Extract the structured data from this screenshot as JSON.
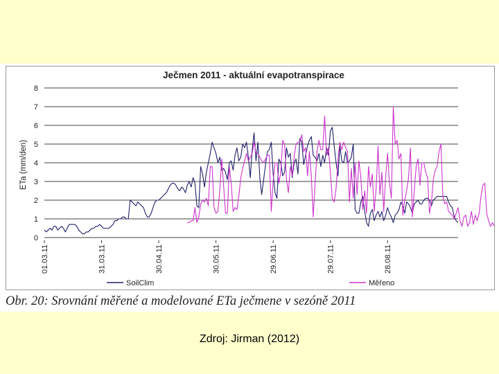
{
  "chart_data": {
    "type": "line",
    "title": "Ječmen 2011 - aktuální evapotranspirace",
    "ylabel": "ETa (mm/den)",
    "xlabel": "",
    "ylim": [
      0,
      8
    ],
    "yticks": [
      "0",
      "1",
      "2",
      "3",
      "4",
      "5",
      "6",
      "7",
      "8"
    ],
    "xticks": [
      "01.03.11",
      "31.03.11",
      "30.04.11",
      "30.05.11",
      "29.06.11",
      "29.07.11",
      "28.08.11"
    ],
    "x_start": "01.03.11",
    "x_end": "29.08.11",
    "grid": "horizontal",
    "legend_position": "bottom",
    "series": [
      {
        "name": "SoilClim",
        "color": "#1f1f6b",
        "values": [
          0.4,
          0.3,
          0.4,
          0.5,
          0.4,
          0.6,
          0.6,
          0.4,
          0.5,
          0.6,
          0.5,
          0.3,
          0.5,
          0.7,
          0.7,
          0.7,
          0.7,
          0.6,
          0.4,
          0.3,
          0.2,
          0.2,
          0.3,
          0.3,
          0.4,
          0.5,
          0.5,
          0.6,
          0.6,
          0.7,
          0.6,
          0.5,
          0.5,
          0.5,
          0.5,
          0.6,
          0.7,
          0.9,
          0.9,
          1.0,
          1.0,
          1.1,
          1.1,
          1.0,
          1.0,
          2.0,
          1.9,
          1.8,
          1.7,
          1.9,
          1.8,
          1.7,
          1.6,
          1.3,
          1.1,
          1.1,
          1.3,
          1.6,
          1.9,
          2.0,
          2.0,
          2.1,
          2.2,
          2.3,
          2.4,
          2.6,
          2.8,
          2.9,
          2.9,
          2.8,
          2.6,
          2.5,
          2.7,
          2.6,
          2.4,
          2.8,
          3.0,
          2.7,
          3.2,
          2.9,
          1.7,
          1.6,
          3.8,
          3.4,
          2.7,
          3.5,
          4.0,
          4.5,
          5.1,
          4.8,
          4.5,
          4.0,
          4.3,
          3.6,
          3.7,
          3.5,
          3.1,
          4.0,
          4.1,
          3.6,
          4.4,
          4.8,
          4.1,
          4.3,
          5.0,
          4.8,
          5.1,
          4.3,
          3.2,
          4.7,
          5.6,
          4.1,
          5.1,
          3.2,
          2.3,
          3.1,
          3.9,
          4.6,
          4.7,
          5.1,
          3.4,
          2.4,
          2.1,
          4.2,
          4.0,
          3.3,
          3.5,
          4.8,
          4.3,
          4.5,
          3.2,
          4.0,
          4.2,
          3.4,
          5.3,
          5.1,
          3.9,
          4.4,
          4.9,
          5.2,
          5.4,
          4.4,
          4.3,
          4.1,
          4.5,
          3.8,
          4.4,
          4.0,
          4.8,
          4.4,
          5.7,
          5.9,
          4.9,
          4.0,
          3.3,
          4.9,
          4.1,
          4.0,
          4.6,
          4.0,
          4.1,
          4.3,
          5.0,
          1.5,
          1.3,
          1.3,
          1.9,
          2.2,
          1.4,
          0.8,
          0.6,
          1.3,
          1.5,
          0.9,
          1.2,
          1.4,
          1.1,
          1.4,
          0.9,
          1.2,
          1.6,
          1.3,
          1.1,
          0.8,
          1.2,
          1.3,
          1.5,
          1.9,
          1.7,
          1.3,
          1.9,
          1.8,
          1.6,
          1.3,
          1.8,
          1.9,
          2.0,
          1.8,
          1.8,
          2.0,
          2.1,
          2.1,
          2.0,
          1.7,
          2.0,
          2.1,
          2.2,
          2.2,
          2.2,
          2.2,
          2.2,
          2.2,
          1.9,
          1.7,
          1.6,
          1.1,
          0.9,
          0.8
        ]
      },
      {
        "name": "Měřeno",
        "color": "#cc33cc",
        "values": [
          null,
          null,
          null,
          null,
          null,
          null,
          null,
          null,
          null,
          null,
          null,
          null,
          null,
          null,
          null,
          null,
          null,
          null,
          null,
          null,
          null,
          null,
          null,
          null,
          null,
          null,
          null,
          null,
          null,
          null,
          null,
          null,
          null,
          null,
          null,
          null,
          null,
          null,
          null,
          null,
          null,
          null,
          null,
          null,
          null,
          null,
          null,
          null,
          null,
          null,
          null,
          null,
          null,
          null,
          null,
          null,
          null,
          null,
          null,
          null,
          null,
          null,
          null,
          null,
          null,
          null,
          null,
          null,
          null,
          null,
          null,
          null,
          null,
          null,
          null,
          0.8,
          0.8,
          0.9,
          0.9,
          1.6,
          0.8,
          1.1,
          1.8,
          2.0,
          1.9,
          2.1,
          1.7,
          3.8,
          3.8,
          1.6,
          1.3,
          1.4,
          2.5,
          4.2,
          2.8,
          1.3,
          1.3,
          3.8,
          2.9,
          1.4,
          1.6,
          1.5,
          2.2,
          3.2,
          3.7,
          4.1,
          4.5,
          4.1,
          4.3,
          4.5,
          5.1,
          4.5,
          4.5,
          4.3,
          4.1,
          4.0,
          4.2,
          4.4,
          4.4,
          1.4,
          3.0,
          4.0,
          4.0,
          2.9,
          3.5,
          5.2,
          5.0,
          3.1,
          2.4,
          3.8,
          3.3,
          4.3,
          5.0,
          5.1,
          5.1,
          5.5,
          4.6,
          4.8,
          3.3,
          4.6,
          3.3,
          1.1,
          2.9,
          4.6,
          5.2,
          4.7,
          4.7,
          6.5,
          4.4,
          4.8,
          3.5,
          2.1,
          1.9,
          2.6,
          4.2,
          5.1,
          4.7,
          5.1,
          4.8,
          4.6,
          1.9,
          3.7,
          2.1,
          4.0,
          2.3,
          4.1,
          3.2,
          1.5,
          2.5,
          1.3,
          3.8,
          2.7,
          3.4,
          1.4,
          2.6,
          4.9,
          2.3,
          3.5,
          1.4,
          3.3,
          4.5,
          2.9,
          2.1,
          7.0,
          5.0,
          5.2,
          4.2,
          4.5,
          1.2,
          2.0,
          2.5,
          3.2,
          4.8,
          1.1,
          2.5,
          3.8,
          4.2,
          2.8,
          4.0,
          4.0,
          3.5,
          3.2,
          1.3,
          1.9,
          3.1,
          3.6,
          3.8,
          4.6,
          5.0,
          2.2,
          1.8,
          1.9,
          1.4,
          1.3,
          1.2,
          1.0,
          1.3,
          1.6,
          0.9,
          0.6,
          1.1,
          1.2,
          0.6,
          0.8,
          1.4,
          0.7,
          1.2,
          0.9,
          1.3,
          2.2,
          2.8,
          2.9,
          1.3,
          0.9,
          0.6,
          0.8,
          0.6,
          1.7,
          1.5,
          1.4,
          1.9,
          2.5,
          2.0,
          1.7,
          1.3,
          1.0,
          0.8,
          0.7,
          0.7,
          0.7,
          1.1,
          0.9,
          1.0,
          0.9,
          1.3,
          1.1,
          1.0,
          0.9
        ]
      }
    ]
  },
  "caption": "Obr. 20: Srovnání měřené a modelované ETa ječmene v sezóně 2011",
  "source": "Zdroj: Jirman (2012)"
}
